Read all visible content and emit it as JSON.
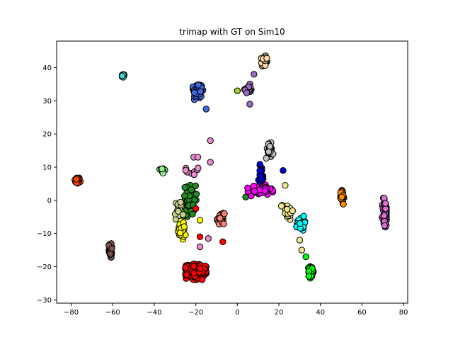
{
  "chart_data": {
    "type": "scatter",
    "title": "trimap with GT on Sim10",
    "xlabel": "",
    "ylabel": "",
    "xlim": [
      -87,
      82
    ],
    "ylim": [
      -31,
      48
    ],
    "xticks": [
      -80,
      -60,
      -40,
      -20,
      0,
      20,
      40,
      60,
      80
    ],
    "yticks": [
      -30,
      -20,
      -10,
      0,
      10,
      20,
      30,
      40
    ],
    "grid": false,
    "legend": "none",
    "marker_edge_color": "#000000",
    "clusters": [
      {
        "color": "#ff4500",
        "center": [
          -77,
          6
        ],
        "spread": [
          1.3,
          1.0
        ],
        "count": 40
      },
      {
        "color": "#48d1cc",
        "center": [
          -55,
          37.5
        ],
        "spread": [
          0.7,
          0.5
        ],
        "count": 10
      },
      {
        "color": "#7a5548",
        "center": [
          -61,
          -15
        ],
        "spread": [
          0.8,
          2.5
        ],
        "count": 40
      },
      {
        "color": "#90ee90",
        "center": [
          -36,
          9
        ],
        "spread": [
          1.2,
          1.3
        ],
        "count": 12
      },
      {
        "color": "#4169e1",
        "center": [
          -19,
          33
        ],
        "spread": [
          2.2,
          2.4
        ],
        "count": 110
      },
      {
        "color": "#ffd8a8",
        "center": [
          13,
          42
        ],
        "spread": [
          1.3,
          1.4
        ],
        "count": 40
      },
      {
        "color": "#9b6bbf",
        "center": [
          5,
          33.5
        ],
        "spread": [
          1.5,
          1.4
        ],
        "count": 30
      },
      {
        "color": "#e68ac8",
        "center": [
          -21,
          9
        ],
        "spread": [
          3.5,
          3.0
        ],
        "count": 8
      },
      {
        "color": "#228b22",
        "center": [
          -23,
          0
        ],
        "spread": [
          3.0,
          4.5
        ],
        "count": 60
      },
      {
        "color": "#c8d48c",
        "center": [
          -28,
          -3
        ],
        "spread": [
          2.0,
          3.0
        ],
        "count": 30
      },
      {
        "color": "#ffff00",
        "center": [
          -27,
          -9
        ],
        "spread": [
          1.8,
          2.5
        ],
        "count": 35
      },
      {
        "color": "#fa8072",
        "center": [
          -8,
          -5.5
        ],
        "spread": [
          1.6,
          1.5
        ],
        "count": 30
      },
      {
        "color": "#ff0000",
        "center": [
          -20,
          -21.5
        ],
        "spread": [
          4.5,
          2.2
        ],
        "count": 260
      },
      {
        "color": "#c0c0c0",
        "center": [
          15.5,
          15
        ],
        "spread": [
          1.8,
          2.2
        ],
        "count": 45
      },
      {
        "color": "#0000cd",
        "center": [
          11.5,
          7
        ],
        "spread": [
          1.2,
          3.5
        ],
        "count": 25
      },
      {
        "color": "#ff00ff",
        "center": [
          11,
          3
        ],
        "spread": [
          5.5,
          1.5
        ],
        "count": 60
      },
      {
        "color": "#f0e68c",
        "center": [
          24,
          -3
        ],
        "spread": [
          3.0,
          2.5
        ],
        "count": 25
      },
      {
        "color": "#00ffff",
        "center": [
          30.5,
          -7
        ],
        "spread": [
          1.8,
          2.0
        ],
        "count": 40
      },
      {
        "color": "#00ff00",
        "center": [
          35.5,
          -21.5
        ],
        "spread": [
          1.2,
          1.8
        ],
        "count": 55
      },
      {
        "color": "#ff8c00",
        "center": [
          50.5,
          1
        ],
        "spread": [
          0.7,
          2.3
        ],
        "count": 40
      },
      {
        "color": "#da70d6",
        "center": [
          71,
          -4
        ],
        "spread": [
          1.2,
          4.5
        ],
        "count": 70
      }
    ],
    "scattered_points": [
      {
        "color": "#4169e1",
        "x": -15,
        "y": 27.5
      },
      {
        "color": "#9acd32",
        "x": 0,
        "y": 33
      },
      {
        "color": "#9b6bbf",
        "x": 8,
        "y": 38
      },
      {
        "color": "#9b6bbf",
        "x": 6,
        "y": 29
      },
      {
        "color": "#e68ac8",
        "x": -13,
        "y": 18
      },
      {
        "color": "#e68ac8",
        "x": -13,
        "y": 11.5
      },
      {
        "color": "#e68ac8",
        "x": -21,
        "y": 13
      },
      {
        "color": "#e68ac8",
        "x": -19,
        "y": 13
      },
      {
        "color": "#e68ac8",
        "x": -14,
        "y": -11.5
      },
      {
        "color": "#e68ac8",
        "x": -18,
        "y": -14
      },
      {
        "color": "#ff0000",
        "x": -7,
        "y": -12.5
      },
      {
        "color": "#ff0000",
        "x": -20,
        "y": -2.5
      },
      {
        "color": "#ff0000",
        "x": -18,
        "y": -11
      },
      {
        "color": "#ffff00",
        "x": -18,
        "y": -6
      },
      {
        "color": "#0000cd",
        "x": 22,
        "y": 9
      },
      {
        "color": "#f0e68c",
        "x": 23,
        "y": 4.5
      },
      {
        "color": "#f0e68c",
        "x": 31,
        "y": -15
      },
      {
        "color": "#f0e68c",
        "x": 30,
        "y": -12
      },
      {
        "color": "#00ff00",
        "x": 33,
        "y": -17
      },
      {
        "color": "#228b22",
        "x": 4,
        "y": 1
      }
    ]
  }
}
